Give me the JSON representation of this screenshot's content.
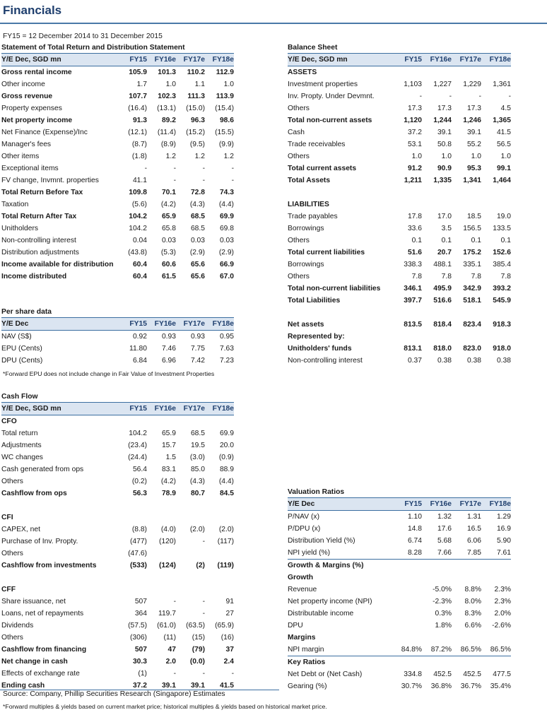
{
  "title": "Financials",
  "period": "FY15 = 12 December 2014 to 31 December 2015",
  "income": {
    "title": "Statement of Total Return and Distribution Statement",
    "header": [
      "Y/E Dec, SGD mn",
      "FY15",
      "FY16e",
      "FY17e",
      "FY18e"
    ],
    "rows": [
      {
        "label": "Gross rental income",
        "v": [
          "105.9",
          "101.3",
          "110.2",
          "112.9"
        ],
        "bold": true
      },
      {
        "label": "Other income",
        "v": [
          "1.7",
          "1.0",
          "1.1",
          "1.0"
        ]
      },
      {
        "label": "Gross revenue",
        "v": [
          "107.7",
          "102.3",
          "111.3",
          "113.9"
        ],
        "bold": true
      },
      {
        "label": "Property expenses",
        "v": [
          "(16.4)",
          "(13.1)",
          "(15.0)",
          "(15.4)"
        ]
      },
      {
        "label": "Net property income",
        "v": [
          "91.3",
          "89.2",
          "96.3",
          "98.6"
        ],
        "bold": true
      },
      {
        "label": "Net Finance (Expense)/Inc",
        "v": [
          "(12.1)",
          "(11.4)",
          "(15.2)",
          "(15.5)"
        ]
      },
      {
        "label": "Manager's fees",
        "v": [
          "(8.7)",
          "(8.9)",
          "(9.5)",
          "(9.9)"
        ]
      },
      {
        "label": "Other items",
        "v": [
          "(1.8)",
          "1.2",
          "1.2",
          "1.2"
        ]
      },
      {
        "label": "Exceptional items",
        "v": [
          "-",
          "-",
          "-",
          "-"
        ]
      },
      {
        "label": "FV change, Invmnt. properties",
        "v": [
          "41.1",
          "-",
          "-",
          "-"
        ]
      },
      {
        "label": "Total Return Before Tax",
        "v": [
          "109.8",
          "70.1",
          "72.8",
          "74.3"
        ],
        "bold": true
      },
      {
        "label": "Taxation",
        "v": [
          "(5.6)",
          "(4.2)",
          "(4.3)",
          "(4.4)"
        ]
      },
      {
        "label": "Total Return After Tax",
        "v": [
          "104.2",
          "65.9",
          "68.5",
          "69.9"
        ],
        "bold": true
      },
      {
        "label": "Unitholders",
        "v": [
          "104.2",
          "65.8",
          "68.5",
          "69.8"
        ]
      },
      {
        "label": "Non-controlling interest",
        "v": [
          "0.04",
          "0.03",
          "0.03",
          "0.03"
        ]
      },
      {
        "label": "Distribution adjustments",
        "v": [
          "(43.8)",
          "(5.3)",
          "(2.9)",
          "(2.9)"
        ]
      },
      {
        "label": "Income available for distribution",
        "v": [
          "60.4",
          "60.6",
          "65.6",
          "66.9"
        ],
        "bold": true
      },
      {
        "label": "Income distributed",
        "v": [
          "60.4",
          "61.5",
          "65.6",
          "67.0"
        ],
        "bold": true
      }
    ]
  },
  "per_share": {
    "title": "Per share data",
    "header": [
      "Y/E Dec",
      "FY15",
      "FY16e",
      "FY17e",
      "FY18e"
    ],
    "rows": [
      {
        "label": "NAV (S$)",
        "v": [
          "0.92",
          "0.93",
          "0.93",
          "0.95"
        ]
      },
      {
        "label": "EPU (Cents)",
        "v": [
          "11.80",
          "7.46",
          "7.75",
          "7.63"
        ]
      },
      {
        "label": "DPU (Cents)",
        "v": [
          "6.84",
          "6.96",
          "7.42",
          "7.23"
        ]
      }
    ],
    "note": "*Forward EPU does not include change in Fair Value of Investment Properties"
  },
  "cash_flow": {
    "title": "Cash Flow",
    "header": [
      "Y/E Dec, SGD mn",
      "FY15",
      "FY16e",
      "FY17e",
      "FY18e"
    ],
    "rows": [
      {
        "label": "CFO",
        "v": [
          "",
          "",
          "",
          ""
        ],
        "bold": true
      },
      {
        "label": "Total return",
        "v": [
          "104.2",
          "65.9",
          "68.5",
          "69.9"
        ]
      },
      {
        "label": "Adjustments",
        "v": [
          "(23.4)",
          "15.7",
          "19.5",
          "20.0"
        ]
      },
      {
        "label": "WC changes",
        "v": [
          "(24.4)",
          "1.5",
          "(3.0)",
          "(0.9)"
        ]
      },
      {
        "label": "Cash generated from ops",
        "v": [
          "56.4",
          "83.1",
          "85.0",
          "88.9"
        ]
      },
      {
        "label": "Others",
        "v": [
          "(0.2)",
          "(4.2)",
          "(4.3)",
          "(4.4)"
        ]
      },
      {
        "label": "Cashflow from ops",
        "v": [
          "56.3",
          "78.9",
          "80.7",
          "84.5"
        ],
        "bold": true
      },
      {
        "label": "",
        "v": [
          "",
          "",
          "",
          ""
        ]
      },
      {
        "label": "CFI",
        "v": [
          "",
          "",
          "",
          ""
        ],
        "bold": true
      },
      {
        "label": "CAPEX, net",
        "v": [
          "(8.8)",
          "(4.0)",
          "(2.0)",
          "(2.0)"
        ]
      },
      {
        "label": "Purchase of Inv. Propty.",
        "v": [
          "(477)",
          "(120)",
          "-",
          "(117)"
        ]
      },
      {
        "label": "Others",
        "v": [
          "(47.6)",
          "",
          "",
          ""
        ]
      },
      {
        "label": "Cashflow from investments",
        "v": [
          "(533)",
          "(124)",
          "(2)",
          "(119)"
        ],
        "bold": true
      },
      {
        "label": "",
        "v": [
          "",
          "",
          "",
          ""
        ]
      },
      {
        "label": "CFF",
        "v": [
          "",
          "",
          "",
          ""
        ],
        "bold": true
      },
      {
        "label": "Share issuance, net",
        "v": [
          "507",
          "-",
          "-",
          "91"
        ]
      },
      {
        "label": "Loans, net of repayments",
        "v": [
          "364",
          "119.7",
          "-",
          "27"
        ]
      },
      {
        "label": "Dividends",
        "v": [
          "(57.5)",
          "(61.0)",
          "(63.5)",
          "(65.9)"
        ]
      },
      {
        "label": "Others",
        "v": [
          "(306)",
          "(11)",
          "(15)",
          "(16)"
        ]
      },
      {
        "label": "Cashflow from financing",
        "v": [
          "507",
          "47",
          "(79)",
          "37"
        ],
        "bold": true
      },
      {
        "label": "Net change in cash",
        "v": [
          "30.3",
          "2.0",
          "(0.0)",
          "2.4"
        ],
        "bold": true
      },
      {
        "label": "Effects of exchange rate",
        "v": [
          "(1)",
          "-",
          "-",
          "-"
        ]
      },
      {
        "label": "Ending cash",
        "v": [
          "37.2",
          "39.1",
          "39.1",
          "41.5"
        ],
        "bold": true
      }
    ]
  },
  "balance": {
    "title": "Balance Sheet",
    "header": [
      "Y/E Dec, SGD mn",
      "FY15",
      "FY16e",
      "FY17e",
      "FY18e"
    ],
    "rows": [
      {
        "label": "ASSETS",
        "v": [
          "",
          "",
          "",
          ""
        ],
        "bold": true
      },
      {
        "label": "Investment properties",
        "v": [
          "1,103",
          "1,227",
          "1,229",
          "1,361"
        ]
      },
      {
        "label": "Inv. Propty. Under Devmnt.",
        "v": [
          "-",
          "-",
          "-",
          "-"
        ]
      },
      {
        "label": "Others",
        "v": [
          "17.3",
          "17.3",
          "17.3",
          "4.5"
        ]
      },
      {
        "label": "Total non-current assets",
        "v": [
          "1,120",
          "1,244",
          "1,246",
          "1,365"
        ],
        "bold": true
      },
      {
        "label": "Cash",
        "v": [
          "37.2",
          "39.1",
          "39.1",
          "41.5"
        ]
      },
      {
        "label": "Trade receivables",
        "v": [
          "53.1",
          "50.8",
          "55.2",
          "56.5"
        ]
      },
      {
        "label": "Others",
        "v": [
          "1.0",
          "1.0",
          "1.0",
          "1.0"
        ]
      },
      {
        "label": "Total current assets",
        "v": [
          "91.2",
          "90.9",
          "95.3",
          "99.1"
        ],
        "bold": true
      },
      {
        "label": "Total Assets",
        "v": [
          "1,211",
          "1,335",
          "1,341",
          "1,464"
        ],
        "bold": true
      },
      {
        "label": "",
        "v": [
          "",
          "",
          "",
          ""
        ]
      },
      {
        "label": "LIABILITIES",
        "v": [
          "",
          "",
          "",
          ""
        ],
        "bold": true
      },
      {
        "label": "Trade payables",
        "v": [
          "17.8",
          "17.0",
          "18.5",
          "19.0"
        ]
      },
      {
        "label": "Borrowings",
        "v": [
          "33.6",
          "3.5",
          "156.5",
          "133.5"
        ]
      },
      {
        "label": "Others",
        "v": [
          "0.1",
          "0.1",
          "0.1",
          "0.1"
        ]
      },
      {
        "label": "Total current liabilities",
        "v": [
          "51.6",
          "20.7",
          "175.2",
          "152.6"
        ],
        "bold": true
      },
      {
        "label": "Borrowings",
        "v": [
          "338.3",
          "488.1",
          "335.1",
          "385.4"
        ]
      },
      {
        "label": "Others",
        "v": [
          "7.8",
          "7.8",
          "7.8",
          "7.8"
        ]
      },
      {
        "label": "Total non-current liabilities",
        "v": [
          "346.1",
          "495.9",
          "342.9",
          "393.2"
        ],
        "bold": true
      },
      {
        "label": "Total Liabilities",
        "v": [
          "397.7",
          "516.6",
          "518.1",
          "545.9"
        ],
        "bold": true
      },
      {
        "label": "",
        "v": [
          "",
          "",
          "",
          ""
        ]
      },
      {
        "label": "Net assets",
        "v": [
          "813.5",
          "818.4",
          "823.4",
          "918.3"
        ],
        "bold": true
      },
      {
        "label": "Represented by:",
        "v": [
          "",
          "",
          "",
          ""
        ],
        "bold": true
      },
      {
        "label": "Unitholders' funds",
        "v": [
          "813.1",
          "818.0",
          "823.0",
          "918.0"
        ],
        "bold": true
      },
      {
        "label": "Non-controlling interest",
        "v": [
          "0.37",
          "0.38",
          "0.38",
          "0.38"
        ]
      }
    ]
  },
  "valuation": {
    "title": "Valuation Ratios",
    "header": [
      "Y/E Dec",
      "FY15",
      "FY16e",
      "FY17e",
      "FY18e"
    ],
    "rows": [
      {
        "label": "P/NAV (x)",
        "v": [
          "1.10",
          "1.32",
          "1.31",
          "1.29"
        ]
      },
      {
        "label": "P/DPU (x)",
        "v": [
          "14.8",
          "17.6",
          "16.5",
          "16.9"
        ]
      },
      {
        "label": "Distribution Yield (%)",
        "v": [
          "6.74",
          "5.68",
          "6.06",
          "5.90"
        ]
      },
      {
        "label": "NPI yield (%)",
        "v": [
          "8.28",
          "7.66",
          "7.85",
          "7.61"
        ]
      },
      {
        "label": "Growth & Margins (%)",
        "v": [
          "",
          "",
          "",
          ""
        ],
        "bold": true,
        "sub": true
      },
      {
        "label": "Growth",
        "v": [
          "",
          "",
          "",
          ""
        ],
        "bold": true
      },
      {
        "label": "Revenue",
        "v": [
          "",
          "-5.0%",
          "8.8%",
          "2.3%"
        ]
      },
      {
        "label": "Net property income (NPI)",
        "v": [
          "",
          "-2.3%",
          "8.0%",
          "2.3%"
        ]
      },
      {
        "label": "Distributable income",
        "v": [
          "",
          "0.3%",
          "8.3%",
          "2.0%"
        ]
      },
      {
        "label": "DPU",
        "v": [
          "",
          "1.8%",
          "6.6%",
          "-2.6%"
        ]
      },
      {
        "label": "Margins",
        "v": [
          "",
          "",
          "",
          ""
        ],
        "bold": true
      },
      {
        "label": "NPI margin",
        "v": [
          "84.8%",
          "87.2%",
          "86.5%",
          "86.5%"
        ]
      },
      {
        "label": "Key Ratios",
        "v": [
          "",
          "",
          "",
          ""
        ],
        "bold": true,
        "sub": true
      },
      {
        "label": "Net Debt or (Net Cash)",
        "v": [
          "334.8",
          "452.5",
          "452.5",
          "477.5"
        ]
      },
      {
        "label": "Gearing (%)",
        "v": [
          "30.7%",
          "36.8%",
          "36.7%",
          "35.4%"
        ]
      }
    ]
  },
  "source": "Source: Company, Phillip Securities Research (Singapore) Estimates",
  "footnote": "*Forward multiples & yields based on current market price; historical multiples & yields based on historical market price."
}
